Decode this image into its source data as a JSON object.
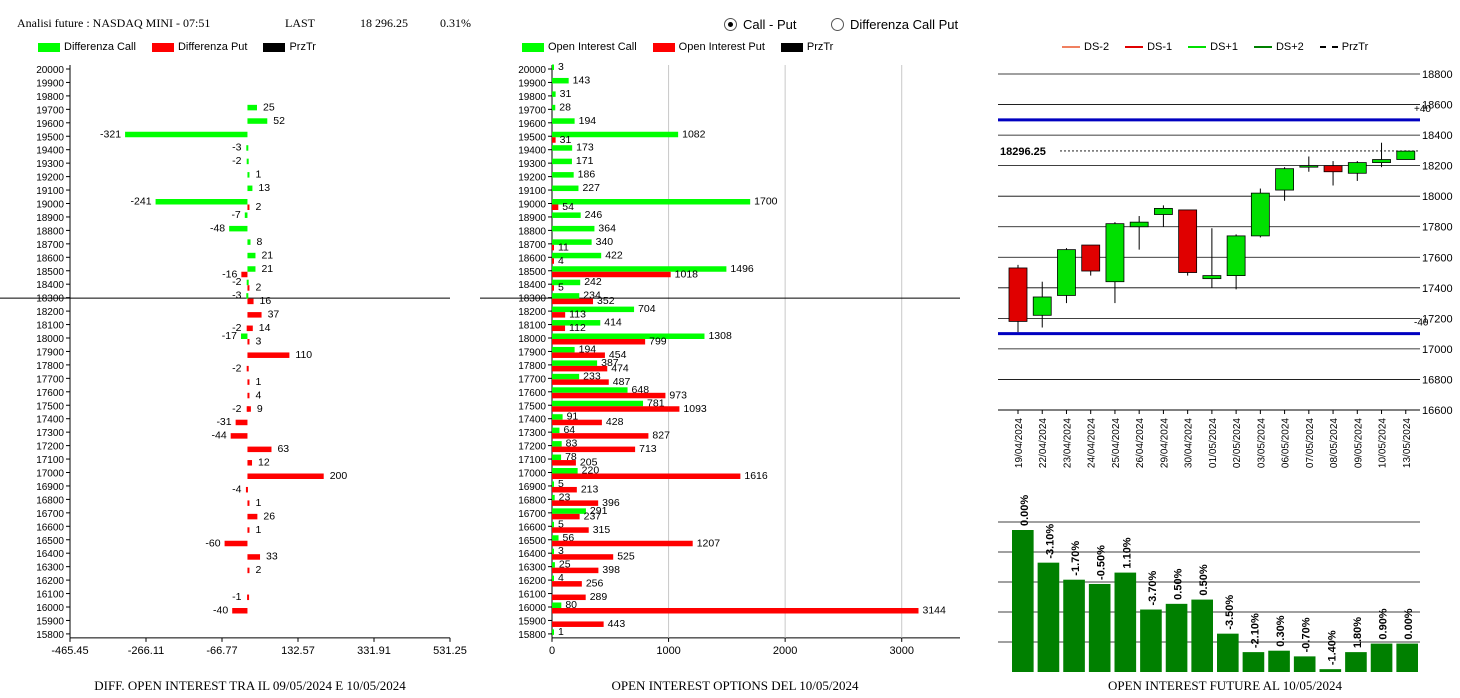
{
  "header": {
    "title": "Analisi future : NASDAQ MINI - 07:51",
    "last_label": "LAST",
    "last_value": "18 296.25",
    "last_change": "0.31%"
  },
  "mode_options": [
    {
      "label": "Call - Put",
      "selected": true
    },
    {
      "label": "Differenza Call Put",
      "selected": false
    }
  ],
  "colors": {
    "green": "#00ff00",
    "red": "#ff0000",
    "black": "#000000",
    "dark_green": "#008000",
    "blue": "#0000c0"
  },
  "legends": {
    "left": [
      {
        "label": "Differenza Call",
        "color": "#00ff00"
      },
      {
        "label": "Differenza Put",
        "color": "#ff0000"
      },
      {
        "label": "PrzTr",
        "color": "#000000"
      }
    ],
    "middle": [
      {
        "label": "Open Interest Call",
        "color": "#00ff00"
      },
      {
        "label": "Open Interest Put",
        "color": "#ff0000"
      },
      {
        "label": "PrzTr",
        "color": "#000000"
      }
    ],
    "right": [
      {
        "label": "DS-2",
        "color": "#f08060",
        "style": "solid"
      },
      {
        "label": "DS-1",
        "color": "#e00000",
        "style": "solid"
      },
      {
        "label": "DS+1",
        "color": "#00e000",
        "style": "solid"
      },
      {
        "label": "DS+2",
        "color": "#008000",
        "style": "solid"
      },
      {
        "label": "PrzTr",
        "color": "#000000",
        "style": "dashed"
      }
    ]
  },
  "captions": {
    "left": "DIFF. OPEN INTEREST TRA IL 09/05/2024 E 10/05/2024",
    "middle": "OPEN INTEREST OPTIONS DEL 10/05/2024",
    "right": "OPEN INTEREST FUTURE AL 10/05/2024"
  },
  "chart_data": [
    {
      "type": "bar",
      "orientation": "horizontal",
      "strikes": [
        20000,
        19900,
        19800,
        19700,
        19600,
        19500,
        19400,
        19300,
        19200,
        19100,
        19000,
        18900,
        18800,
        18700,
        18600,
        18500,
        18400,
        18300,
        18200,
        18100,
        18000,
        17900,
        17800,
        17700,
        17600,
        17500,
        17400,
        17300,
        17200,
        17100,
        17000,
        16900,
        16800,
        16700,
        16600,
        16500,
        16400,
        16300,
        16200,
        16100,
        16000,
        15900,
        15800
      ],
      "xticks": [
        "-465.45",
        "-266.11",
        "-66.77",
        "132.57",
        "331.91",
        "531.25"
      ],
      "xlim": [
        -465.45,
        531.25
      ],
      "price_line": 18296.25,
      "series": [
        {
          "name": "Differenza Call",
          "color": "#00ff00",
          "points": [
            {
              "strike": 19700,
              "value": 25
            },
            {
              "strike": 19600,
              "value": 52
            },
            {
              "strike": 19500,
              "value": -321
            },
            {
              "strike": 19400,
              "value": -3
            },
            {
              "strike": 19300,
              "value": -2
            },
            {
              "strike": 19200,
              "value": 1
            },
            {
              "strike": 19100,
              "value": 13
            },
            {
              "strike": 19000,
              "value": -241
            },
            {
              "strike": 18900,
              "value": -7
            },
            {
              "strike": 18800,
              "value": -48
            },
            {
              "strike": 18700,
              "value": 8
            },
            {
              "strike": 18600,
              "value": 21
            },
            {
              "strike": 18500,
              "value": 21
            },
            {
              "strike": 18400,
              "value": -2
            },
            {
              "strike": 18300,
              "value": -3
            },
            {
              "strike": 18000,
              "value": -17
            }
          ]
        },
        {
          "name": "Differenza Put",
          "color": "#ff0000",
          "points": [
            {
              "strike": 19000,
              "value": 2
            },
            {
              "strike": 18500,
              "value": -16
            },
            {
              "strike": 18400,
              "value": 2
            },
            {
              "strike": 18300,
              "value": 16
            },
            {
              "strike": 18200,
              "value": 37
            },
            {
              "strike": 18100,
              "value": -2
            },
            {
              "strike": 18100,
              "value": 14
            },
            {
              "strike": 18000,
              "value": 3
            },
            {
              "strike": 17900,
              "value": 110
            },
            {
              "strike": 17800,
              "value": -2
            },
            {
              "strike": 17700,
              "value": 1
            },
            {
              "strike": 17600,
              "value": 4
            },
            {
              "strike": 17500,
              "value": -2
            },
            {
              "strike": 17500,
              "value": 9
            },
            {
              "strike": 17400,
              "value": -31
            },
            {
              "strike": 17300,
              "value": -44
            },
            {
              "strike": 17200,
              "value": 63
            },
            {
              "strike": 17100,
              "value": 12
            },
            {
              "strike": 17000,
              "value": 200
            },
            {
              "strike": 16900,
              "value": -4
            },
            {
              "strike": 16800,
              "value": 1
            },
            {
              "strike": 16700,
              "value": 26
            },
            {
              "strike": 16600,
              "value": 1
            },
            {
              "strike": 16500,
              "value": -60
            },
            {
              "strike": 16400,
              "value": 33
            },
            {
              "strike": 16300,
              "value": 2
            },
            {
              "strike": 16100,
              "value": -1
            },
            {
              "strike": 16000,
              "value": -40
            }
          ]
        }
      ],
      "caption": "DIFF. OPEN INTEREST TRA IL 09/05/2024 E 10/05/2024"
    },
    {
      "type": "bar",
      "orientation": "horizontal",
      "strikes": [
        20000,
        19900,
        19800,
        19700,
        19600,
        19500,
        19400,
        19300,
        19200,
        19100,
        19000,
        18900,
        18800,
        18700,
        18600,
        18500,
        18400,
        18300,
        18200,
        18100,
        18000,
        17900,
        17800,
        17700,
        17600,
        17500,
        17400,
        17300,
        17200,
        17100,
        17000,
        16900,
        16800,
        16700,
        16600,
        16500,
        16400,
        16300,
        16200,
        16100,
        16000,
        15900,
        15800
      ],
      "xticks": [
        "0",
        "1000",
        "2000",
        "3000"
      ],
      "xlim": [
        0,
        3500
      ],
      "price_line": 18296.25,
      "series": [
        {
          "name": "Open Interest Call",
          "color": "#00ff00",
          "values": [
            3,
            143,
            31,
            28,
            194,
            1082,
            173,
            171,
            186,
            227,
            1700,
            246,
            364,
            340,
            422,
            1496,
            242,
            234,
            704,
            414,
            1308,
            194,
            387,
            233,
            648,
            781,
            91,
            64,
            83,
            78,
            220,
            5,
            23,
            291,
            5,
            56,
            3,
            25,
            4,
            null,
            80,
            null,
            1
          ]
        },
        {
          "name": "Open Interest Put",
          "color": "#ff0000",
          "values": [
            null,
            null,
            null,
            null,
            null,
            31,
            null,
            null,
            null,
            null,
            54,
            null,
            null,
            11,
            4,
            1018,
            5,
            352,
            113,
            112,
            799,
            454,
            474,
            487,
            973,
            1093,
            428,
            827,
            713,
            205,
            1616,
            213,
            396,
            237,
            315,
            1207,
            525,
            398,
            256,
            289,
            3144,
            443,
            null
          ]
        }
      ],
      "caption": "OPEN INTEREST OPTIONS DEL 10/05/2024"
    },
    {
      "type": "candlestick",
      "dates": [
        "19/04/2024",
        "22/04/2024",
        "23/04/2024",
        "24/04/2024",
        "25/04/2024",
        "26/04/2024",
        "29/04/2024",
        "30/04/2024",
        "01/05/2024",
        "02/05/2024",
        "03/05/2024",
        "06/05/2024",
        "07/05/2024",
        "08/05/2024",
        "09/05/2024",
        "10/05/2024",
        "13/05/2024"
      ],
      "candles": [
        {
          "open": 17530,
          "high": 17550,
          "low": 17110,
          "close": 17180
        },
        {
          "open": 17220,
          "high": 17440,
          "low": 17140,
          "close": 17340
        },
        {
          "open": 17350,
          "high": 17660,
          "low": 17300,
          "close": 17650
        },
        {
          "open": 17680,
          "high": 17680,
          "low": 17480,
          "close": 17510
        },
        {
          "open": 17440,
          "high": 17830,
          "low": 17300,
          "close": 17820
        },
        {
          "open": 17800,
          "high": 17870,
          "low": 17650,
          "close": 17830
        },
        {
          "open": 17880,
          "high": 17940,
          "low": 17800,
          "close": 17920
        },
        {
          "open": 17910,
          "high": 17910,
          "low": 17480,
          "close": 17500
        },
        {
          "open": 17460,
          "high": 17790,
          "low": 17400,
          "close": 17480
        },
        {
          "open": 17480,
          "high": 17750,
          "low": 17390,
          "close": 17740
        },
        {
          "open": 17740,
          "high": 18050,
          "low": 17730,
          "close": 18020
        },
        {
          "open": 18040,
          "high": 18190,
          "low": 17970,
          "close": 18180
        },
        {
          "open": 18190,
          "high": 18260,
          "low": 18160,
          "close": 18200
        },
        {
          "open": 18200,
          "high": 18230,
          "low": 18070,
          "close": 18160
        },
        {
          "open": 18150,
          "high": 18230,
          "low": 18100,
          "close": 18220
        },
        {
          "open": 18220,
          "high": 18350,
          "low": 18190,
          "close": 18240
        },
        {
          "open": 18240,
          "high": 18300,
          "low": 18240,
          "close": 18295
        }
      ],
      "yticks": [
        18800,
        18600,
        18400,
        18200,
        18000,
        17800,
        17600,
        17400,
        17200,
        17000,
        16800,
        16600
      ],
      "ylim": [
        16600,
        18800
      ],
      "price_line": {
        "value": 18296.25,
        "label": "18296.25"
      },
      "band_lines": [
        {
          "value": 18500,
          "label": "+40"
        },
        {
          "value": 17100,
          "label": "-40"
        }
      ]
    },
    {
      "type": "bar",
      "categories": [
        "19/04/2024",
        "22/04/2024",
        "23/04/2024",
        "24/04/2024",
        "25/04/2024",
        "26/04/2024",
        "29/04/2024",
        "30/04/2024",
        "01/05/2024",
        "02/05/2024",
        "03/05/2024",
        "06/05/2024",
        "07/05/2024",
        "08/05/2024",
        "09/05/2024",
        "10/05/2024",
        "13/05/2024"
      ],
      "labels": [
        "0.00%",
        "-3.10%",
        "-1.70%",
        "-0.50%",
        "1.10%",
        "-3.70%",
        "0.50%",
        "0.50%",
        "-3.50%",
        "-2.10%",
        "0.30%",
        "-0.70%",
        "-1.40%",
        "1.80%",
        "0.90%",
        "0.00%"
      ],
      "relative_heights": [
        1.0,
        0.77,
        0.65,
        0.62,
        0.7,
        0.44,
        0.48,
        0.51,
        0.27,
        0.14,
        0.15,
        0.11,
        0.02,
        0.14,
        0.2,
        0.2
      ],
      "color": "#008000",
      "caption": "OPEN INTEREST FUTURE AL 10/05/2024"
    }
  ]
}
